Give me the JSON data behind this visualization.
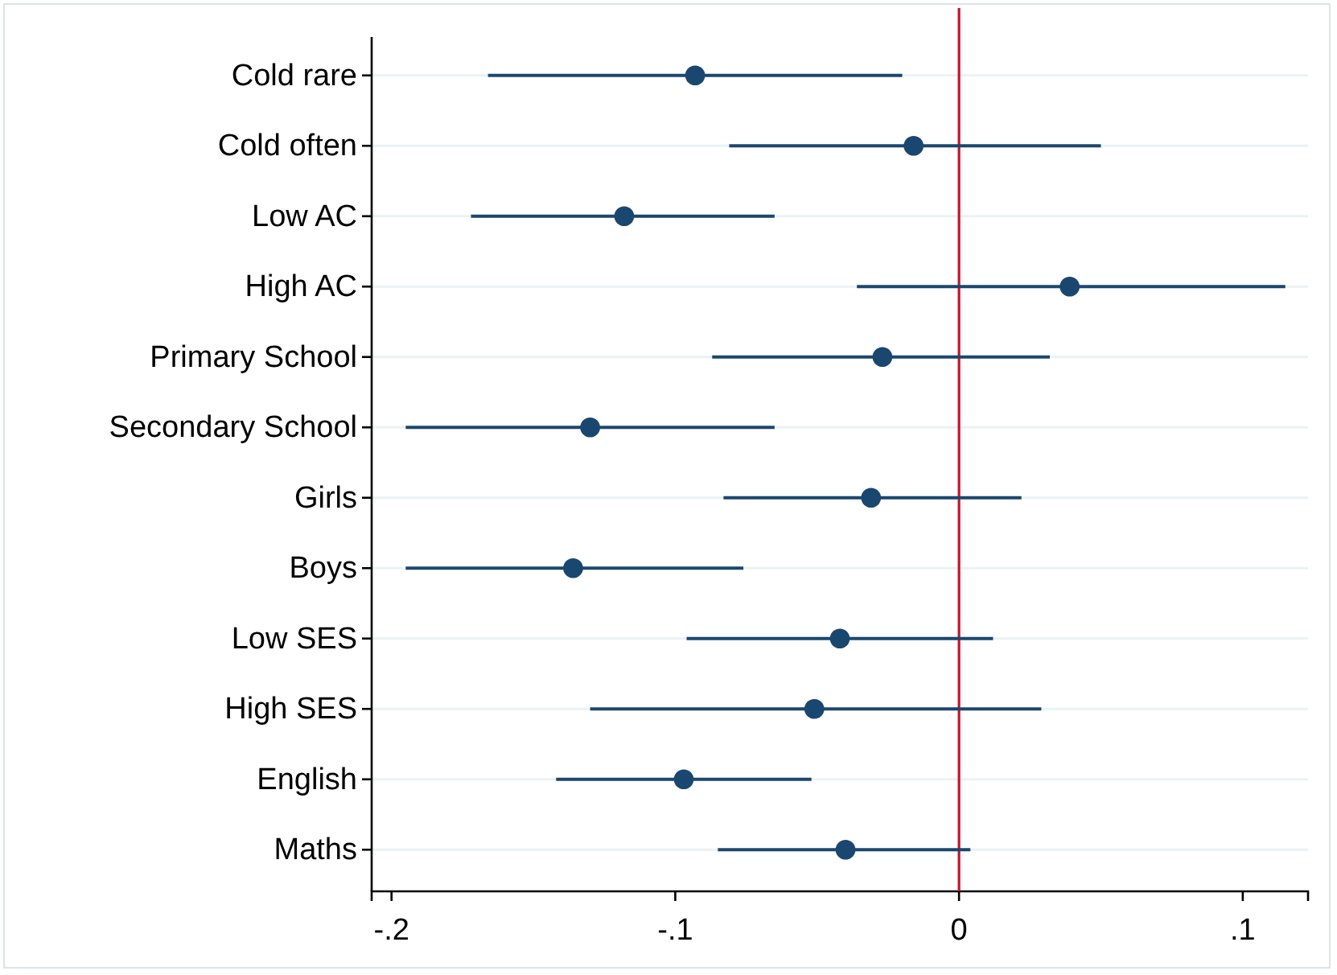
{
  "chart_data": {
    "type": "scatter",
    "orientation": "horizontal",
    "categories": [
      "Cold rare",
      "Cold often",
      "Low AC",
      "High AC",
      "Primary School",
      "Secondary School",
      "Girls",
      "Boys",
      "Low SES",
      "High SES",
      "English",
      "Maths"
    ],
    "values": [
      -0.093,
      -0.016,
      -0.118,
      0.039,
      -0.027,
      -0.13,
      -0.031,
      -0.136,
      -0.042,
      -0.051,
      -0.097,
      -0.04
    ],
    "errors": [
      [
        -0.166,
        -0.02
      ],
      [
        -0.081,
        0.05
      ],
      [
        -0.172,
        -0.065
      ],
      [
        -0.036,
        0.115
      ],
      [
        -0.087,
        0.032
      ],
      [
        -0.195,
        -0.065
      ],
      [
        -0.083,
        0.022
      ],
      [
        -0.195,
        -0.076
      ],
      [
        -0.096,
        0.012
      ],
      [
        -0.13,
        0.029
      ],
      [
        -0.142,
        -0.052
      ],
      [
        -0.085,
        0.004
      ]
    ],
    "color": "#1a476f",
    "marker": "circle",
    "xlim": [
      -0.207,
      0.123
    ],
    "xticks": [
      {
        "value": -0.2,
        "label": "-.2"
      },
      {
        "value": -0.1,
        "label": "-.1"
      },
      0,
      {
        "value": 0.1,
        "label": ".1"
      }
    ],
    "ref_lines": [
      {
        "axis": "x",
        "value": 0,
        "color": "#c8102e"
      }
    ],
    "grid": "y"
  }
}
